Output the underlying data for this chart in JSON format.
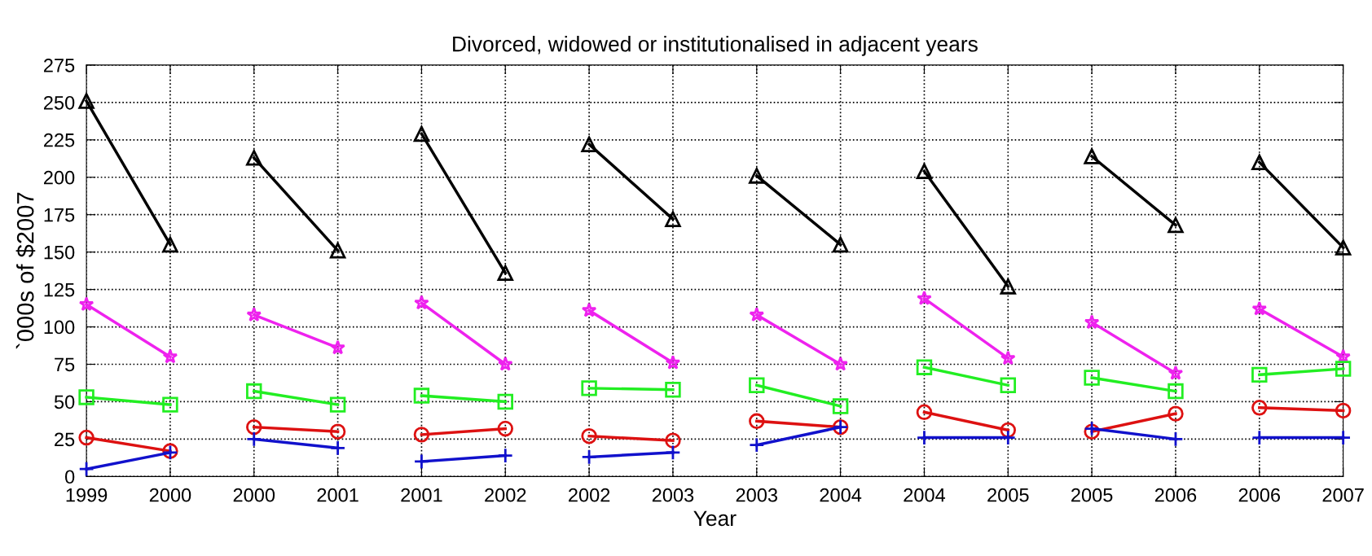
{
  "chart_data": {
    "type": "line",
    "title": "Divorced, widowed or institutionalised in adjacent years",
    "xlabel": "Year",
    "ylabel": "`000s of $2007",
    "categories": [
      "1999",
      "2000",
      "2000",
      "2001",
      "2001",
      "2002",
      "2002",
      "2003",
      "2003",
      "2004",
      "2004",
      "2005",
      "2005",
      "2006",
      "2006",
      "2007"
    ],
    "ylim": [
      0,
      275
    ],
    "yticks": [
      0,
      25,
      50,
      75,
      100,
      125,
      150,
      175,
      200,
      225,
      250,
      275
    ],
    "grid": true,
    "series": [
      {
        "color": "#000000",
        "marker": "triangle",
        "values": [
          251,
          155,
          null,
          null,
          null,
          null,
          null,
          null,
          null,
          null,
          null,
          null,
          null,
          null,
          null,
          null
        ]
      },
      {
        "color": "#000000",
        "marker": "triangle",
        "values": [
          null,
          null,
          213,
          151,
          null,
          null,
          null,
          null,
          null,
          null,
          null,
          null,
          null,
          null,
          null,
          null
        ]
      },
      {
        "color": "#000000",
        "marker": "triangle",
        "values": [
          null,
          null,
          null,
          null,
          229,
          136,
          null,
          null,
          null,
          null,
          null,
          null,
          null,
          null,
          null,
          null
        ]
      },
      {
        "color": "#000000",
        "marker": "triangle",
        "values": [
          null,
          null,
          null,
          null,
          null,
          null,
          222,
          172,
          null,
          null,
          null,
          null,
          null,
          null,
          null,
          null
        ]
      },
      {
        "color": "#000000",
        "marker": "triangle",
        "values": [
          null,
          null,
          null,
          null,
          null,
          null,
          null,
          null,
          201,
          155,
          null,
          null,
          null,
          null,
          null,
          null
        ]
      },
      {
        "color": "#000000",
        "marker": "triangle",
        "values": [
          null,
          null,
          null,
          null,
          null,
          null,
          null,
          null,
          null,
          null,
          204,
          127,
          null,
          null,
          null,
          null
        ]
      },
      {
        "color": "#000000",
        "marker": "triangle",
        "values": [
          null,
          null,
          null,
          null,
          null,
          null,
          null,
          null,
          null,
          null,
          null,
          null,
          214,
          168,
          null,
          null
        ]
      },
      {
        "color": "#000000",
        "marker": "triangle",
        "values": [
          null,
          null,
          null,
          null,
          null,
          null,
          null,
          null,
          null,
          null,
          null,
          null,
          null,
          null,
          210,
          153
        ]
      },
      {
        "color": "#ee22ee",
        "marker": "star",
        "values": [
          115,
          80,
          null,
          null,
          null,
          null,
          null,
          null,
          null,
          null,
          null,
          null,
          null,
          null,
          null,
          null
        ]
      },
      {
        "color": "#ee22ee",
        "marker": "star",
        "values": [
          null,
          null,
          108,
          86,
          null,
          null,
          null,
          null,
          null,
          null,
          null,
          null,
          null,
          null,
          null,
          null
        ]
      },
      {
        "color": "#ee22ee",
        "marker": "star",
        "values": [
          null,
          null,
          null,
          null,
          116,
          75,
          null,
          null,
          null,
          null,
          null,
          null,
          null,
          null,
          null,
          null
        ]
      },
      {
        "color": "#ee22ee",
        "marker": "star",
        "values": [
          null,
          null,
          null,
          null,
          null,
          null,
          111,
          76,
          null,
          null,
          null,
          null,
          null,
          null,
          null,
          null
        ]
      },
      {
        "color": "#ee22ee",
        "marker": "star",
        "values": [
          null,
          null,
          null,
          null,
          null,
          null,
          null,
          null,
          108,
          75,
          null,
          null,
          null,
          null,
          null,
          null
        ]
      },
      {
        "color": "#ee22ee",
        "marker": "star",
        "values": [
          null,
          null,
          null,
          null,
          null,
          null,
          null,
          null,
          null,
          null,
          119,
          79,
          null,
          null,
          null,
          null
        ]
      },
      {
        "color": "#ee22ee",
        "marker": "star",
        "values": [
          null,
          null,
          null,
          null,
          null,
          null,
          null,
          null,
          null,
          null,
          null,
          null,
          103,
          69,
          null,
          null
        ]
      },
      {
        "color": "#ee22ee",
        "marker": "star",
        "values": [
          null,
          null,
          null,
          null,
          null,
          null,
          null,
          null,
          null,
          null,
          null,
          null,
          null,
          null,
          112,
          80
        ]
      },
      {
        "color": "#22ee22",
        "marker": "square",
        "values": [
          53,
          48,
          null,
          null,
          null,
          null,
          null,
          null,
          null,
          null,
          null,
          null,
          null,
          null,
          null,
          null
        ]
      },
      {
        "color": "#22ee22",
        "marker": "square",
        "values": [
          null,
          null,
          57,
          48,
          null,
          null,
          null,
          null,
          null,
          null,
          null,
          null,
          null,
          null,
          null,
          null
        ]
      },
      {
        "color": "#22ee22",
        "marker": "square",
        "values": [
          null,
          null,
          null,
          null,
          54,
          50,
          null,
          null,
          null,
          null,
          null,
          null,
          null,
          null,
          null,
          null
        ]
      },
      {
        "color": "#22ee22",
        "marker": "square",
        "values": [
          null,
          null,
          null,
          null,
          null,
          null,
          59,
          58,
          null,
          null,
          null,
          null,
          null,
          null,
          null,
          null
        ]
      },
      {
        "color": "#22ee22",
        "marker": "square",
        "values": [
          null,
          null,
          null,
          null,
          null,
          null,
          null,
          null,
          61,
          47,
          null,
          null,
          null,
          null,
          null,
          null
        ]
      },
      {
        "color": "#22ee22",
        "marker": "square",
        "values": [
          null,
          null,
          null,
          null,
          null,
          null,
          null,
          null,
          null,
          null,
          73,
          61,
          null,
          null,
          null,
          null
        ]
      },
      {
        "color": "#22ee22",
        "marker": "square",
        "values": [
          null,
          null,
          null,
          null,
          null,
          null,
          null,
          null,
          null,
          null,
          null,
          null,
          66,
          57,
          null,
          null
        ]
      },
      {
        "color": "#22ee22",
        "marker": "square",
        "values": [
          null,
          null,
          null,
          null,
          null,
          null,
          null,
          null,
          null,
          null,
          null,
          null,
          null,
          null,
          68,
          72
        ]
      },
      {
        "color": "#dd1111",
        "marker": "circle",
        "values": [
          26,
          17,
          null,
          null,
          null,
          null,
          null,
          null,
          null,
          null,
          null,
          null,
          null,
          null,
          null,
          null
        ]
      },
      {
        "color": "#dd1111",
        "marker": "circle",
        "values": [
          null,
          null,
          33,
          30,
          null,
          null,
          null,
          null,
          null,
          null,
          null,
          null,
          null,
          null,
          null,
          null
        ]
      },
      {
        "color": "#dd1111",
        "marker": "circle",
        "values": [
          null,
          null,
          null,
          null,
          28,
          32,
          null,
          null,
          null,
          null,
          null,
          null,
          null,
          null,
          null,
          null
        ]
      },
      {
        "color": "#dd1111",
        "marker": "circle",
        "values": [
          null,
          null,
          null,
          null,
          null,
          null,
          27,
          24,
          null,
          null,
          null,
          null,
          null,
          null,
          null,
          null
        ]
      },
      {
        "color": "#dd1111",
        "marker": "circle",
        "values": [
          null,
          null,
          null,
          null,
          null,
          null,
          null,
          null,
          37,
          33,
          null,
          null,
          null,
          null,
          null,
          null
        ]
      },
      {
        "color": "#dd1111",
        "marker": "circle",
        "values": [
          null,
          null,
          null,
          null,
          null,
          null,
          null,
          null,
          null,
          null,
          43,
          31,
          null,
          null,
          null,
          null
        ]
      },
      {
        "color": "#dd1111",
        "marker": "circle",
        "values": [
          null,
          null,
          null,
          null,
          null,
          null,
          null,
          null,
          null,
          null,
          null,
          null,
          30,
          42,
          null,
          null
        ]
      },
      {
        "color": "#dd1111",
        "marker": "circle",
        "values": [
          null,
          null,
          null,
          null,
          null,
          null,
          null,
          null,
          null,
          null,
          null,
          null,
          null,
          null,
          46,
          44
        ]
      },
      {
        "color": "#1111cc",
        "marker": "cross",
        "values": [
          5,
          16,
          null,
          null,
          null,
          null,
          null,
          null,
          null,
          null,
          null,
          null,
          null,
          null,
          null,
          null
        ]
      },
      {
        "color": "#1111cc",
        "marker": "cross",
        "values": [
          null,
          null,
          25,
          19,
          null,
          null,
          null,
          null,
          null,
          null,
          null,
          null,
          null,
          null,
          null,
          null
        ]
      },
      {
        "color": "#1111cc",
        "marker": "cross",
        "values": [
          null,
          null,
          null,
          null,
          10,
          14,
          null,
          null,
          null,
          null,
          null,
          null,
          null,
          null,
          null,
          null
        ]
      },
      {
        "color": "#1111cc",
        "marker": "cross",
        "values": [
          null,
          null,
          null,
          null,
          null,
          null,
          13,
          16,
          null,
          null,
          null,
          null,
          null,
          null,
          null,
          null
        ]
      },
      {
        "color": "#1111cc",
        "marker": "cross",
        "values": [
          null,
          null,
          null,
          null,
          null,
          null,
          null,
          null,
          21,
          33,
          null,
          null,
          null,
          null,
          null,
          null
        ]
      },
      {
        "color": "#1111cc",
        "marker": "cross",
        "values": [
          null,
          null,
          null,
          null,
          null,
          null,
          null,
          null,
          null,
          null,
          26,
          26,
          null,
          null,
          null,
          null
        ]
      },
      {
        "color": "#1111cc",
        "marker": "cross",
        "values": [
          null,
          null,
          null,
          null,
          null,
          null,
          null,
          null,
          null,
          null,
          null,
          null,
          32,
          25,
          null,
          null
        ]
      },
      {
        "color": "#1111cc",
        "marker": "cross",
        "values": [
          null,
          null,
          null,
          null,
          null,
          null,
          null,
          null,
          null,
          null,
          null,
          null,
          null,
          null,
          26,
          26
        ]
      }
    ]
  }
}
